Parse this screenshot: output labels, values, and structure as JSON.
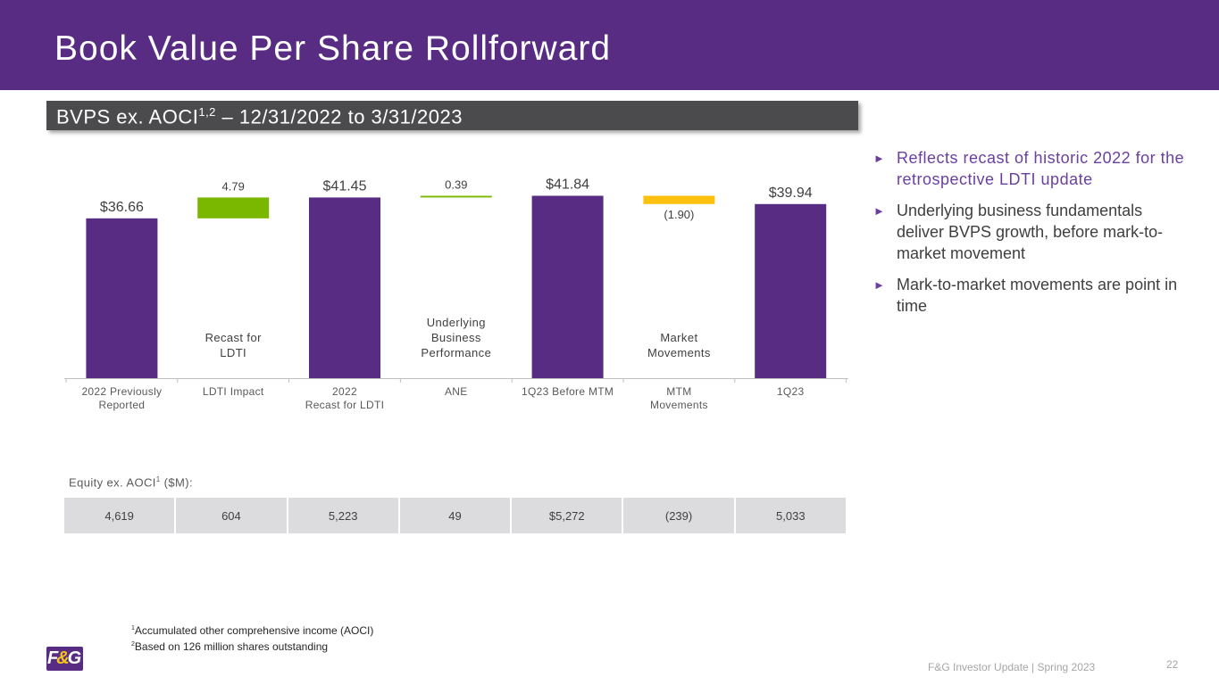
{
  "title": "Book Value Per Share Rollforward",
  "subtitle": {
    "prefix": "BVPS ex. AOCI",
    "superscript": "1,2",
    "suffix": " – 12/31/2022 to 3/31/2023"
  },
  "chart_data": {
    "type": "bar",
    "subtype": "waterfall",
    "title": "BVPS ex. AOCI – 12/31/2022 to 3/31/2023",
    "categories": [
      "2022 Previously Reported",
      "LDTI Impact",
      "2022 Recast for LDTI",
      "ANE",
      "1Q23 Before MTM",
      "MTM Movements",
      "1Q23"
    ],
    "category_lines": [
      [
        "2022 Previously",
        "Reported"
      ],
      [
        "LDTI Impact"
      ],
      [
        "2022",
        "Recast for LDTI"
      ],
      [
        "ANE"
      ],
      [
        "1Q23 Before MTM"
      ],
      [
        "MTM",
        "Movements"
      ],
      [
        "1Q23"
      ]
    ],
    "bars": [
      {
        "kind": "total",
        "start": 0,
        "end": 36.66,
        "label": "$36.66",
        "label_pos": "top",
        "note_lines": []
      },
      {
        "kind": "increase",
        "start": 36.66,
        "end": 41.45,
        "label": "4.79",
        "label_pos": "top",
        "note_lines": [
          "Recast for",
          "LDTI"
        ]
      },
      {
        "kind": "total",
        "start": 0,
        "end": 41.45,
        "label": "$41.45",
        "label_pos": "top",
        "note_lines": []
      },
      {
        "kind": "increase",
        "start": 41.45,
        "end": 41.84,
        "label": "0.39",
        "label_pos": "top",
        "note_lines": [
          "Underlying",
          "Business",
          "Performance"
        ]
      },
      {
        "kind": "total",
        "start": 0,
        "end": 41.84,
        "label": "$41.84",
        "label_pos": "top",
        "note_lines": []
      },
      {
        "kind": "decrease",
        "start": 41.84,
        "end": 39.94,
        "label": "(1.90)",
        "label_pos": "bottom",
        "note_lines": [
          "Market",
          "Movements"
        ]
      },
      {
        "kind": "total",
        "start": 0,
        "end": 39.94,
        "label": "$39.94",
        "label_pos": "top",
        "note_lines": []
      }
    ],
    "colors": {
      "total": "#582c83",
      "increase": "#7ab800",
      "decrease": "#fcc10f"
    },
    "xlabel": "",
    "ylabel": "",
    "ylim": [
      0,
      41.84
    ],
    "grid": false,
    "legend": "none"
  },
  "equity": {
    "label_prefix": "Equity ex. AOCI",
    "label_sup": "1",
    "label_suffix": " ($M):",
    "values": [
      "4,619",
      "604",
      "5,223",
      "49",
      "$5,272",
      "(239)",
      "5,033"
    ]
  },
  "bullets": [
    {
      "text": "Reflects recast of historic 2022 for the retrospective LDTI update",
      "accent": true
    },
    {
      "text": "Underlying business fundamentals deliver BVPS growth, before mark-to-market movement",
      "accent": false
    },
    {
      "text": "Mark-to-market movements are point in time",
      "accent": false
    }
  ],
  "bullet_marker": "►",
  "footnotes": [
    {
      "sup": "1",
      "text": "Accumulated other comprehensive income (AOCI)"
    },
    {
      "sup": "2",
      "text": "Based on 126 million shares outstanding"
    }
  ],
  "logo": {
    "left": "F",
    "amp": "&",
    "right": "G"
  },
  "footer": "F&G Investor Update | Spring 2023",
  "page_number": "22"
}
